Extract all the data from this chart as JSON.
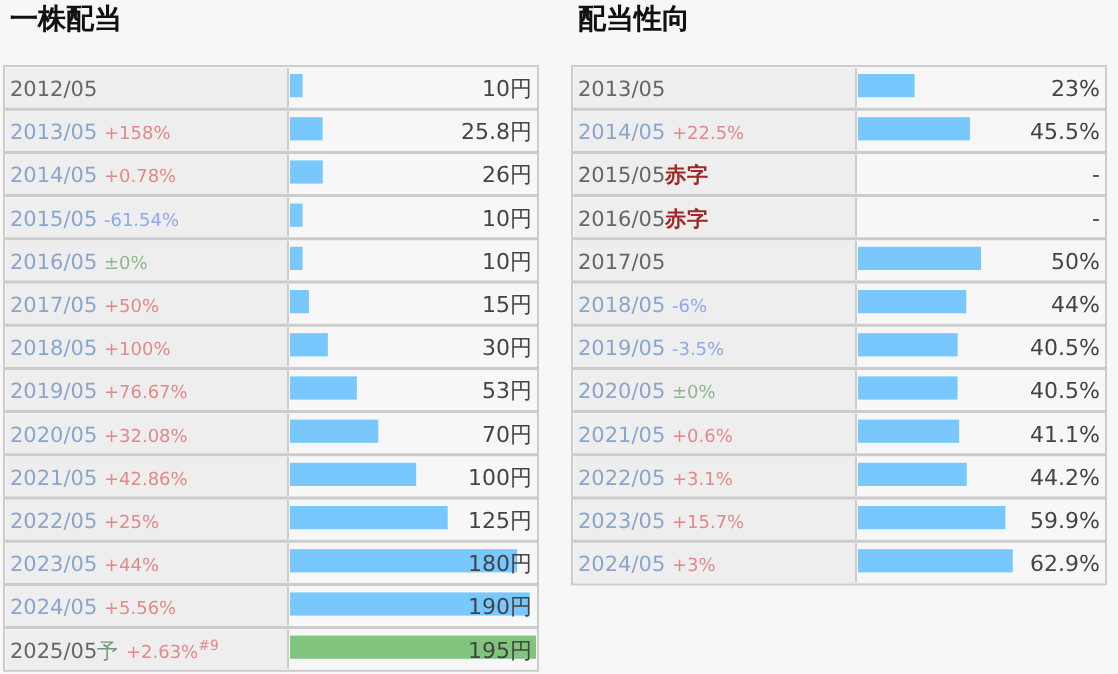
{
  "chart_data": [
    {
      "type": "bar",
      "orientation": "horizontal",
      "title": "一株配当",
      "categories": [
        "2012/05",
        "2013/05 +158%",
        "2014/05 +0.78%",
        "2015/05 -61.54%",
        "2016/05 ±0%",
        "2017/05 +50%",
        "2018/05 +100%",
        "2019/05 +76.67%",
        "2020/05 +32.08%",
        "2021/05 +42.86%",
        "2022/05 +25%",
        "2023/05 +44%",
        "2024/05 +5.56%",
        "2025/05予 +2.63%$^{#9}$"
      ],
      "values": [
        10,
        25.8,
        26,
        10,
        10,
        15,
        30,
        53,
        70,
        100,
        125,
        180,
        190,
        195
      ],
      "value_labels": [
        "10円",
        "25.8円",
        "26円",
        "10円",
        "10円",
        "15円",
        "30円",
        "53円",
        "70円",
        "100円",
        "125円",
        "180円",
        "190円",
        "195円"
      ],
      "colors": [
        "#78c8fe",
        "#78c8fe",
        "#78c8fe",
        "#78c8fe",
        "#78c8fe",
        "#78c8fe",
        "#78c8fe",
        "#78c8fe",
        "#78c8fe",
        "#78c8fe",
        "#78c8fe",
        "#78c8fe",
        "#78c8fe",
        "#80c47e"
      ],
      "xlim": [
        0,
        195
      ]
    },
    {
      "type": "bar",
      "orientation": "horizontal",
      "title": "配当性向",
      "categories": [
        "2013/05",
        "2014/05 +22.5%",
        "2015/05赤字",
        "2016/05赤字",
        "2017/05",
        "2018/05 -6%",
        "2019/05 -3.5%",
        "2020/05 ±0%",
        "2021/05 +0.6%",
        "2022/05 +3.1%",
        "2023/05 +15.7%",
        "2024/05 +3%"
      ],
      "values": [
        23,
        45.5,
        null,
        null,
        50,
        44,
        40.5,
        40.5,
        41.1,
        44.2,
        59.9,
        62.9
      ],
      "value_labels": [
        "23%",
        "45.5%",
        "-",
        "-",
        "50%",
        "44%",
        "40.5%",
        "40.5%",
        "41.1%",
        "44.2%",
        "59.9%",
        "62.9%"
      ],
      "colors": [
        "#78c8fe",
        "#78c8fe",
        null,
        null,
        "#78c8fe",
        "#78c8fe",
        "#78c8fe",
        "#78c8fe",
        "#78c8fe",
        "#78c8fe",
        "#78c8fe",
        "#78c8fe"
      ],
      "xlim": [
        0,
        100
      ]
    }
  ]
}
